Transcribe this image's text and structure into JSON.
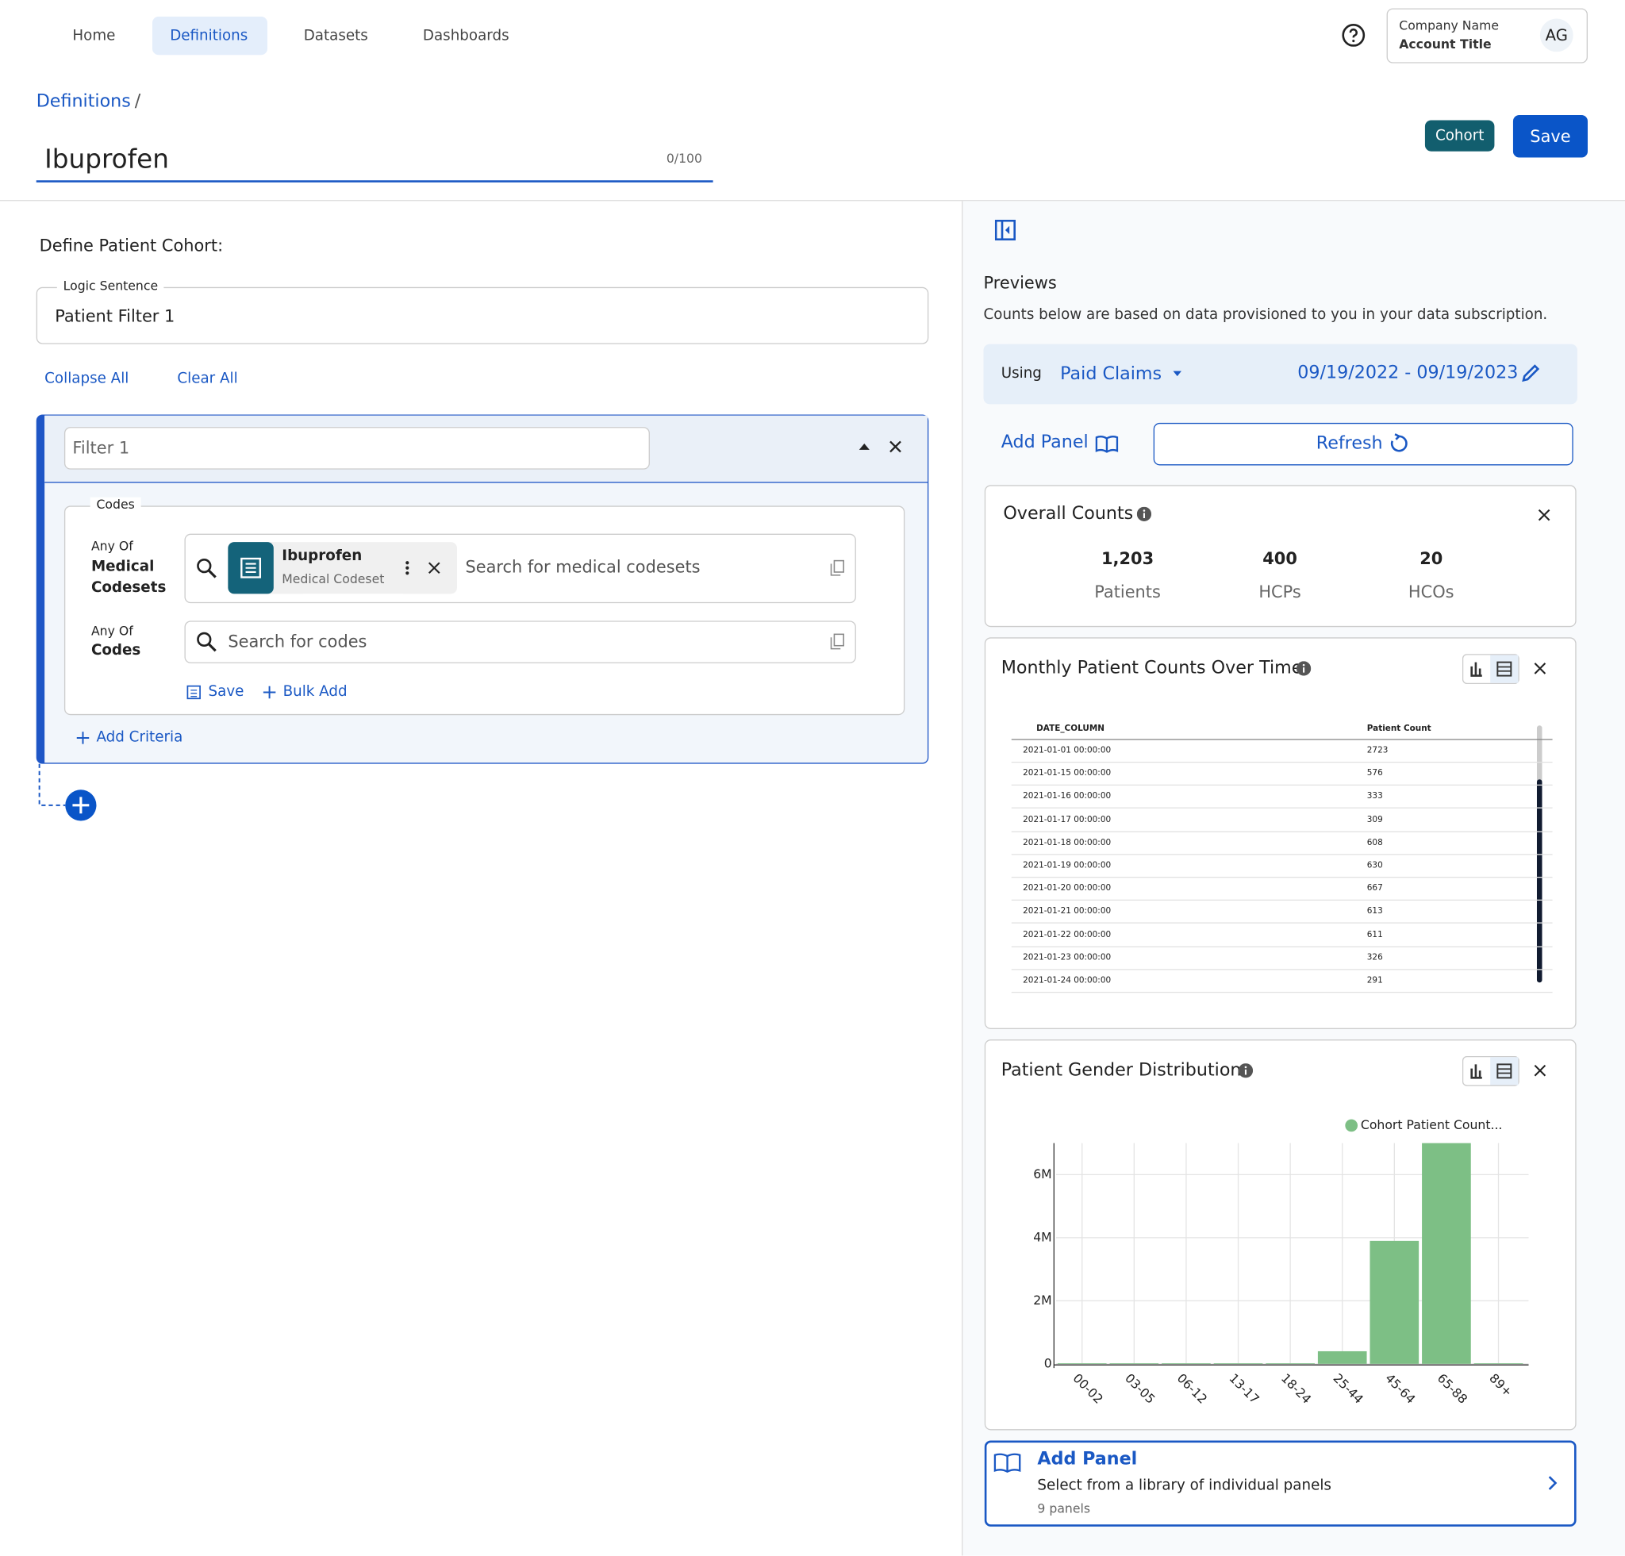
{
  "nav": {
    "items": [
      "Home",
      "Definitions",
      "Datasets",
      "Dashboards"
    ],
    "company": "Company Name",
    "account": "Account Title",
    "avatar": "AG"
  },
  "header": {
    "breadcrumb": "Definitions",
    "breadcrumb_sep": "/",
    "title": "Ibuprofen",
    "char_count": "0/100",
    "cohort_button": "Cohort",
    "save_button": "Save"
  },
  "left": {
    "heading": "Define Patient Cohort:",
    "logic_label": "Logic Sentence",
    "logic_value": "Patient Filter 1",
    "collapse_all": "Collapse All",
    "clear_all": "Clear All",
    "filter": {
      "name": "Filter 1",
      "codes_label": "Codes",
      "rows": [
        {
          "qualifier": "Any Of",
          "label": "Medical Codesets",
          "chip_title": "Ibuprofen",
          "chip_subtitle": "Medical Codeset",
          "placeholder": "Search for medical codesets"
        },
        {
          "qualifier": "Any Of",
          "label": "Codes",
          "placeholder": "Search for codes"
        }
      ],
      "save": "Save",
      "bulk_add": "Bulk Add",
      "add_criteria": "Add Criteria"
    }
  },
  "previews": {
    "title": "Previews",
    "description": "Counts below are based on data provisioned to you in your data subscription.",
    "using_label": "Using",
    "source": "Paid Claims",
    "date_range": "09/19/2022 - 09/19/2023",
    "add_panel": "Add Panel",
    "refresh": "Refresh",
    "overall": {
      "title": "Overall Counts",
      "stats": [
        {
          "value": "1,203",
          "label": "Patients"
        },
        {
          "value": "400",
          "label": "HCPs"
        },
        {
          "value": "20",
          "label": "HCOs"
        }
      ]
    },
    "monthly": {
      "title": "Monthly Patient Counts Over Time",
      "columns": [
        "DATE_COLUMN",
        "Patient Count"
      ],
      "rows": [
        [
          "2021-01-01 00:00:00",
          "2723"
        ],
        [
          "2021-01-15 00:00:00",
          "576"
        ],
        [
          "2021-01-16 00:00:00",
          "333"
        ],
        [
          "2021-01-17 00:00:00",
          "309"
        ],
        [
          "2021-01-18 00:00:00",
          "608"
        ],
        [
          "2021-01-19 00:00:00",
          "630"
        ],
        [
          "2021-01-20 00:00:00",
          "667"
        ],
        [
          "2021-01-21 00:00:00",
          "613"
        ],
        [
          "2021-01-22 00:00:00",
          "611"
        ],
        [
          "2021-01-23 00:00:00",
          "326"
        ],
        [
          "2021-01-24 00:00:00",
          "291"
        ]
      ]
    },
    "add_panel_card": {
      "title": "Add Panel",
      "description": "Select from a library of individual panels",
      "count": "9 panels"
    }
  },
  "chart_data": {
    "type": "bar",
    "title": "Patient Gender Distribution",
    "categories": [
      "00-02",
      "03-05",
      "06-12",
      "13-17",
      "18-24",
      "25-44",
      "45-64",
      "65-88",
      "89+"
    ],
    "series": [
      {
        "name": "Cohort Patient Count...",
        "color": "#7dbf85",
        "values": [
          20000,
          20000,
          20000,
          20000,
          20000,
          400000,
          3900000,
          7000000,
          20000
        ]
      }
    ],
    "ylim": [
      0,
      7000000
    ],
    "yticks": [
      0,
      {
        "value": 2000000,
        "label": "2M"
      },
      {
        "value": 4000000,
        "label": "4M"
      },
      {
        "value": 6000000,
        "label": "6M"
      }
    ],
    "grid": true
  }
}
